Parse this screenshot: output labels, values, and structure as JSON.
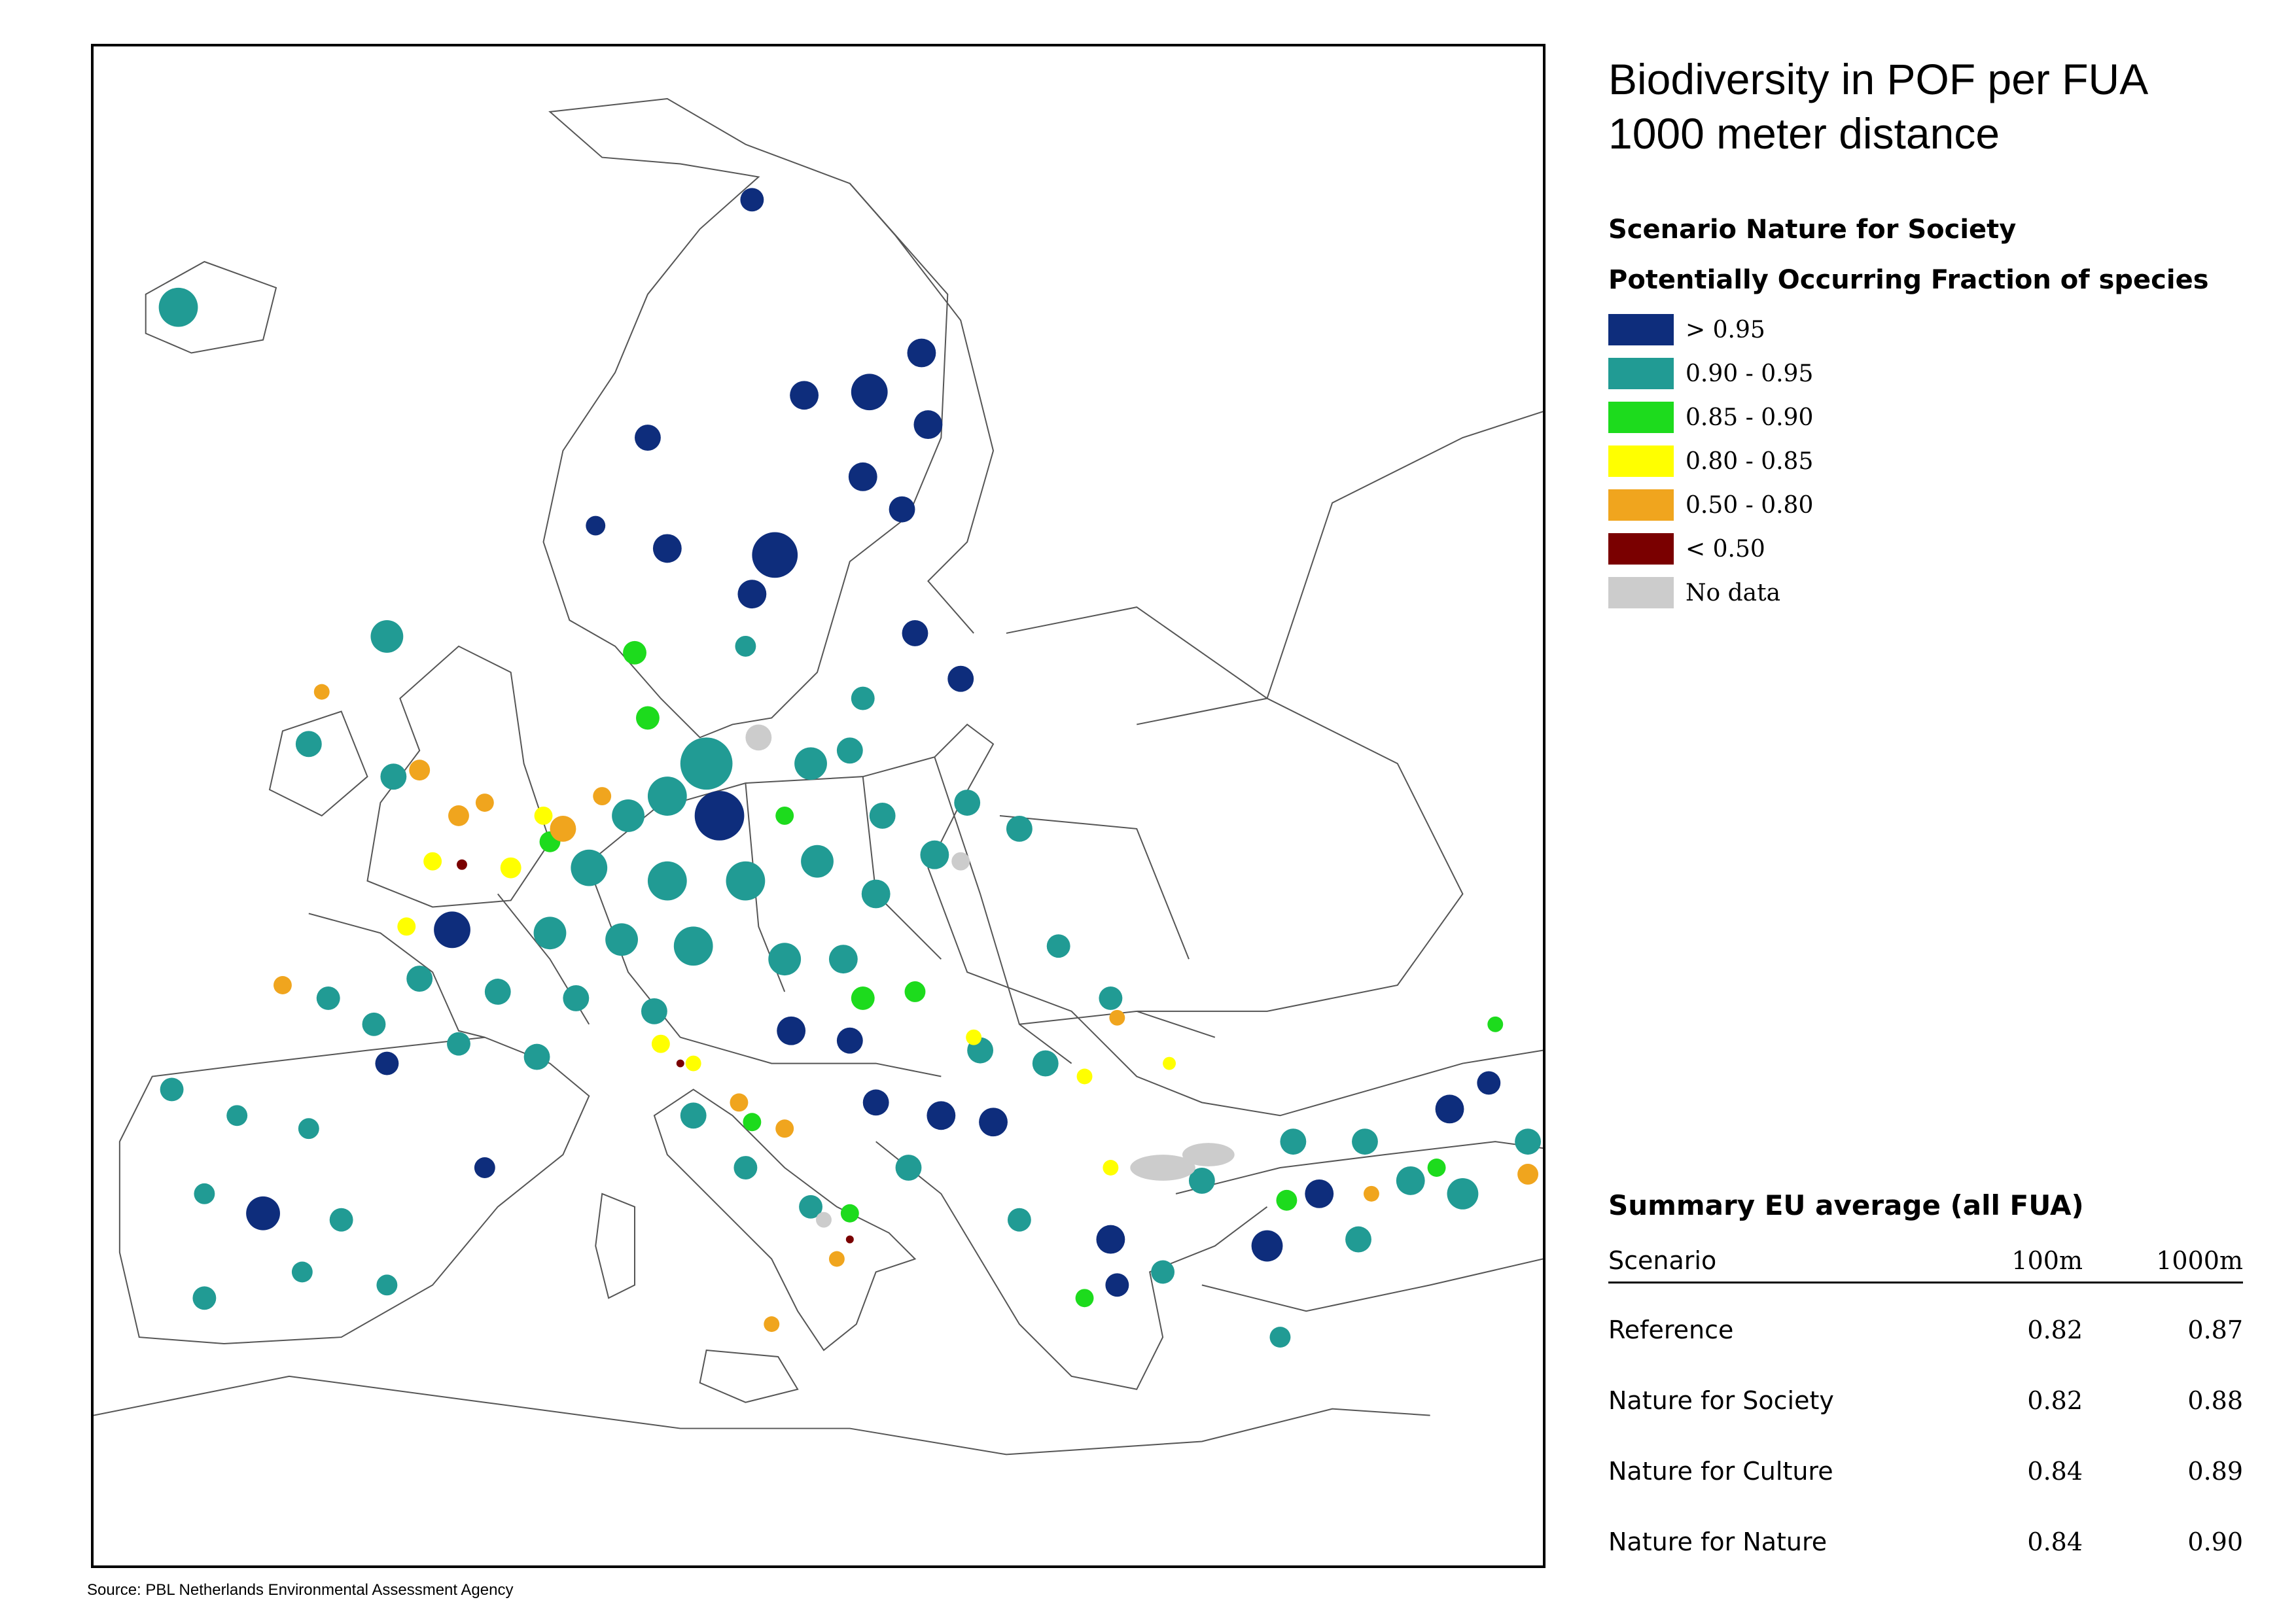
{
  "title": {
    "line1": "Biodiversity in POF per FUA",
    "line2": "1000 meter distance"
  },
  "scenario_heading": "Scenario Nature for Society",
  "legend": {
    "heading": "Potentially Occurring Fraction of species",
    "items": [
      {
        "label": "> 0.95",
        "color": "#0e2d7c"
      },
      {
        "label": "0.90 - 0.95",
        "color": "#219b94"
      },
      {
        "label": "0.85 - 0.90",
        "color": "#1ddb1d"
      },
      {
        "label": "0.80 - 0.85",
        "color": "#ffff00"
      },
      {
        "label": "0.50 - 0.80",
        "color": "#f0a51e"
      },
      {
        "label": "< 0.50",
        "color": "#7a0000"
      },
      {
        "label": "No data",
        "color": "#cccccc"
      }
    ]
  },
  "summary": {
    "heading": "Summary EU average (all FUA)",
    "columns": [
      "Scenario",
      "100m",
      "1000m"
    ],
    "rows": [
      {
        "scenario": "Reference",
        "m100": "0.82",
        "m1000": "0.87"
      },
      {
        "scenario": "Nature for Society",
        "m100": "0.82",
        "m1000": "0.88"
      },
      {
        "scenario": "Nature for Culture",
        "m100": "0.84",
        "m1000": "0.89"
      },
      {
        "scenario": "Nature for Nature",
        "m100": "0.84",
        "m1000": "0.90"
      }
    ]
  },
  "source": "Source: PBL Netherlands Environmental Assessment Agency"
}
